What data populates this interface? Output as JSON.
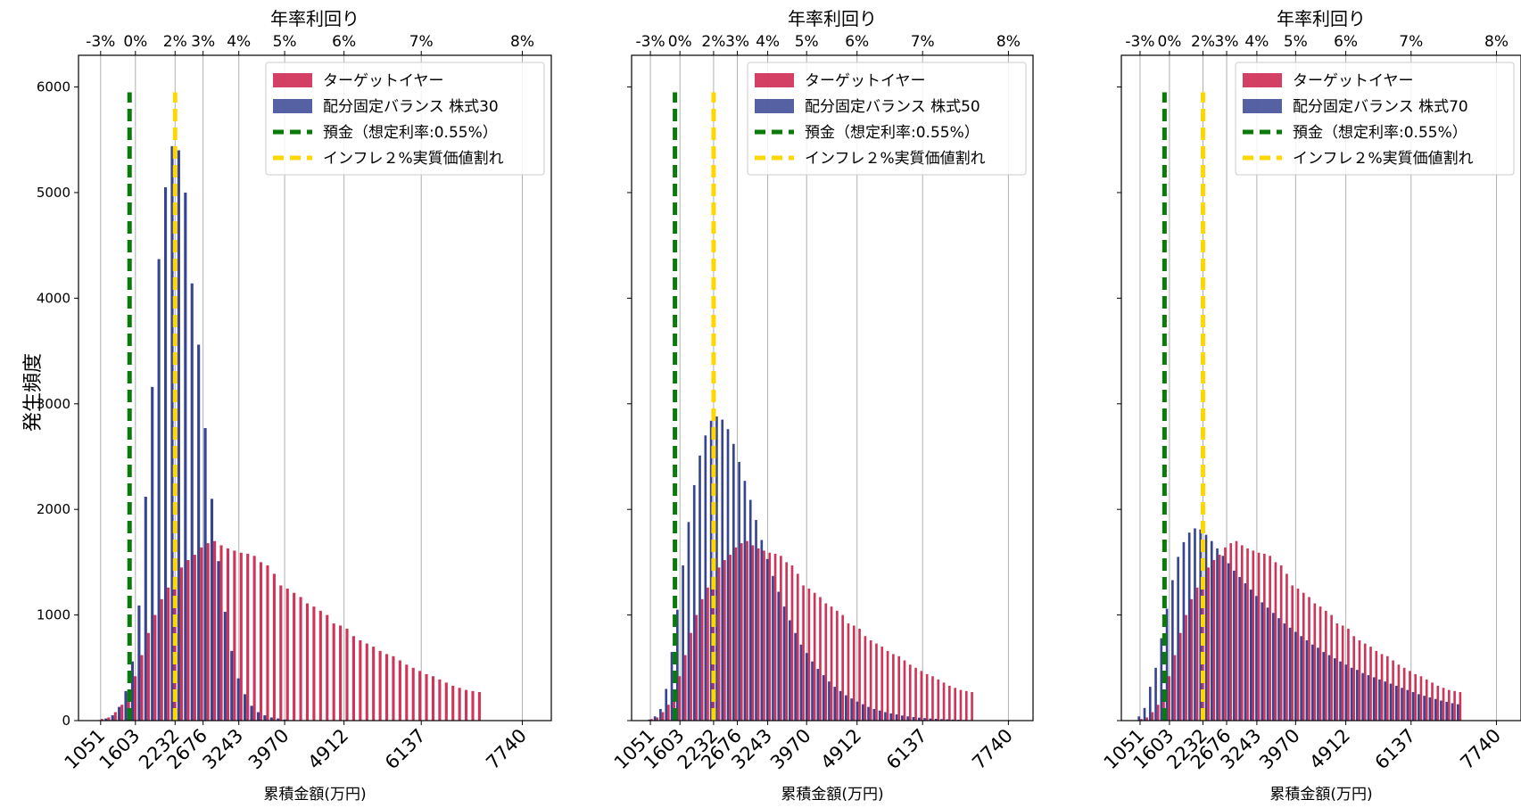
{
  "figure": {
    "ylabel": "発生頻度",
    "xlabel": "累積金額(万円)",
    "top_xlabel": "年率利回り"
  },
  "colors": {
    "target": "#C8103C",
    "balance": "#2B3A8C",
    "deposit": "#0A7A0A",
    "inflation": "#FFD700",
    "grid": "#b0b0b0"
  },
  "chart_data": [
    {
      "type": "bar",
      "title": "",
      "xlabel": "累積金額(万円)",
      "ylabel": "発生頻度",
      "xlim": [
        700,
        8200
      ],
      "ylim": [
        0,
        6300
      ],
      "x_ticks": [
        1051,
        1603,
        2232,
        2676,
        3243,
        3970,
        4912,
        6137,
        7740
      ],
      "y_ticks": [
        0,
        1000,
        2000,
        3000,
        4000,
        5000,
        6000
      ],
      "top_axis": {
        "label": "年率利回り",
        "ticks": [
          {
            "x": 1051,
            "label": "-3%"
          },
          {
            "x": 1603,
            "label": "0%"
          },
          {
            "x": 2232,
            "label": "2%"
          },
          {
            "x": 2676,
            "label": "3%"
          },
          {
            "x": 3243,
            "label": "4%"
          },
          {
            "x": 3970,
            "label": "5%"
          },
          {
            "x": 4912,
            "label": "6%"
          },
          {
            "x": 6137,
            "label": "7%"
          },
          {
            "x": 7740,
            "label": "8%"
          }
        ]
      },
      "grid": "vertical at x ticks",
      "legend": "top-right",
      "bin_start": 1000,
      "bin_width": 105,
      "series": [
        {
          "name": "ターゲットイヤー",
          "color": "#C8103C",
          "values": [
            15,
            30,
            80,
            150,
            260,
            420,
            620,
            830,
            1000,
            1150,
            1260,
            1360,
            1450,
            1520,
            1570,
            1640,
            1680,
            1700,
            1660,
            1630,
            1610,
            1590,
            1580,
            1560,
            1500,
            1470,
            1390,
            1280,
            1250,
            1210,
            1170,
            1110,
            1080,
            1040,
            1000,
            920,
            900,
            870,
            800,
            760,
            730,
            700,
            660,
            630,
            610,
            570,
            530,
            500,
            470,
            440,
            420,
            390,
            360,
            330,
            310,
            290,
            280,
            270
          ]
        },
        {
          "name": "配分固定バランス 株式30",
          "color": "#2B3A8C",
          "values": [
            5,
            20,
            50,
            130,
            280,
            560,
            1090,
            2120,
            3160,
            4370,
            5050,
            5440,
            5400,
            5000,
            4140,
            3560,
            2770,
            2100,
            1510,
            1030,
            660,
            400,
            250,
            140,
            80,
            50,
            30,
            20,
            10,
            5,
            3,
            2,
            0,
            0,
            0,
            0,
            0,
            0,
            0,
            0,
            0,
            0,
            0,
            0,
            0,
            0,
            0,
            0,
            0,
            0,
            0,
            0,
            0,
            0,
            0,
            0,
            0,
            0
          ]
        }
      ],
      "reference_lines": [
        {
          "name": "預金（想定利率:0.55%）",
          "x": 1510,
          "color": "#0A7A0A",
          "top": 5950
        },
        {
          "name": "インフレ２%実質価値割れ",
          "x": 2232,
          "color": "#FFD700",
          "top": 5950
        }
      ]
    },
    {
      "type": "bar",
      "title": "",
      "xlabel": "累積金額(万円)",
      "ylabel": "",
      "xlim": [
        700,
        8200
      ],
      "ylim": [
        0,
        6300
      ],
      "x_ticks": [
        1051,
        1603,
        2232,
        2676,
        3243,
        3970,
        4912,
        6137,
        7740
      ],
      "y_ticks": [
        0,
        1000,
        2000,
        3000,
        4000,
        5000,
        6000
      ],
      "top_axis": {
        "label": "年率利回り",
        "ticks": [
          {
            "x": 1051,
            "label": "-3%"
          },
          {
            "x": 1603,
            "label": "0%"
          },
          {
            "x": 2232,
            "label": "2%"
          },
          {
            "x": 2676,
            "label": "3%"
          },
          {
            "x": 3243,
            "label": "4%"
          },
          {
            "x": 3970,
            "label": "5%"
          },
          {
            "x": 4912,
            "label": "6%"
          },
          {
            "x": 6137,
            "label": "7%"
          },
          {
            "x": 7740,
            "label": "8%"
          }
        ]
      },
      "grid": "vertical at x ticks",
      "legend": "top-right",
      "bin_start": 1000,
      "bin_width": 105,
      "series": [
        {
          "name": "ターゲットイヤー",
          "color": "#C8103C",
          "values": [
            15,
            30,
            80,
            150,
            260,
            420,
            620,
            830,
            1000,
            1150,
            1260,
            1360,
            1450,
            1520,
            1570,
            1640,
            1680,
            1700,
            1660,
            1630,
            1610,
            1590,
            1580,
            1560,
            1500,
            1470,
            1390,
            1280,
            1250,
            1210,
            1170,
            1110,
            1080,
            1040,
            1000,
            920,
            900,
            870,
            800,
            760,
            730,
            700,
            660,
            630,
            610,
            570,
            530,
            500,
            470,
            440,
            420,
            390,
            360,
            330,
            310,
            290,
            280,
            270
          ]
        },
        {
          "name": "配分固定バランス 株式50",
          "color": "#2B3A8C",
          "values": [
            10,
            40,
            110,
            300,
            650,
            1050,
            1470,
            1880,
            2230,
            2510,
            2700,
            2840,
            2880,
            2850,
            2760,
            2620,
            2450,
            2270,
            2090,
            1900,
            1710,
            1530,
            1370,
            1220,
            1080,
            950,
            830,
            720,
            640,
            560,
            490,
            430,
            370,
            320,
            280,
            240,
            210,
            180,
            155,
            130,
            110,
            95,
            80,
            68,
            58,
            48,
            40,
            34,
            28,
            24,
            20,
            17,
            14,
            12,
            10,
            8,
            6,
            5
          ]
        }
      ],
      "reference_lines": [
        {
          "name": "預金（想定利率:0.55%）",
          "x": 1510,
          "color": "#0A7A0A",
          "top": 5950
        },
        {
          "name": "インフレ２%実質価値割れ",
          "x": 2232,
          "color": "#FFD700",
          "top": 5950
        }
      ]
    },
    {
      "type": "bar",
      "title": "",
      "xlabel": "累積金額(万円)",
      "ylabel": "",
      "xlim": [
        700,
        8200
      ],
      "ylim": [
        0,
        6300
      ],
      "x_ticks": [
        1051,
        1603,
        2232,
        2676,
        3243,
        3970,
        4912,
        6137,
        7740
      ],
      "y_ticks": [
        0,
        1000,
        2000,
        3000,
        4000,
        5000,
        6000
      ],
      "top_axis": {
        "label": "年率利回り",
        "ticks": [
          {
            "x": 1051,
            "label": "-3%"
          },
          {
            "x": 1603,
            "label": "0%"
          },
          {
            "x": 2232,
            "label": "2%"
          },
          {
            "x": 2676,
            "label": "3%"
          },
          {
            "x": 3243,
            "label": "4%"
          },
          {
            "x": 3970,
            "label": "5%"
          },
          {
            "x": 4912,
            "label": "6%"
          },
          {
            "x": 6137,
            "label": "7%"
          },
          {
            "x": 7740,
            "label": "8%"
          }
        ]
      },
      "grid": "vertical at x ticks",
      "legend": "top-right",
      "bin_start": 1000,
      "bin_width": 105,
      "series": [
        {
          "name": "ターゲットイヤー",
          "color": "#C8103C",
          "values": [
            15,
            30,
            80,
            150,
            260,
            420,
            620,
            830,
            1000,
            1150,
            1260,
            1360,
            1450,
            1520,
            1570,
            1640,
            1680,
            1700,
            1660,
            1630,
            1610,
            1590,
            1580,
            1560,
            1500,
            1470,
            1390,
            1280,
            1250,
            1210,
            1170,
            1110,
            1080,
            1040,
            1000,
            920,
            900,
            870,
            800,
            760,
            730,
            700,
            660,
            630,
            610,
            570,
            530,
            500,
            470,
            440,
            420,
            390,
            360,
            330,
            310,
            290,
            280,
            270
          ]
        },
        {
          "name": "配分固定バランス 株式70",
          "color": "#2B3A8C",
          "values": [
            40,
            120,
            320,
            500,
            780,
            1060,
            1330,
            1550,
            1690,
            1780,
            1820,
            1810,
            1760,
            1700,
            1630,
            1560,
            1490,
            1420,
            1360,
            1300,
            1240,
            1180,
            1120,
            1070,
            1020,
            970,
            920,
            880,
            840,
            800,
            760,
            720,
            690,
            650,
            620,
            590,
            560,
            530,
            500,
            480,
            450,
            430,
            410,
            390,
            370,
            350,
            330,
            310,
            290,
            270,
            250,
            235,
            220,
            205,
            190,
            178,
            165,
            155
          ]
        }
      ],
      "reference_lines": [
        {
          "name": "預金（想定利率:0.55%）",
          "x": 1510,
          "color": "#0A7A0A",
          "top": 5950
        },
        {
          "name": "インフレ２%実質価値割れ",
          "x": 2232,
          "color": "#FFD700",
          "top": 5950
        }
      ]
    }
  ]
}
